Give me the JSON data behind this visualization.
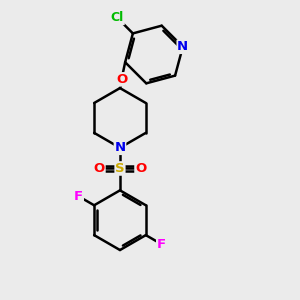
{
  "background_color": "#ebebeb",
  "bond_color": "#000000",
  "bond_width": 1.8,
  "atom_colors": {
    "N_pyridine": "#0000ee",
    "N_piperidine": "#0000ee",
    "O": "#ff0000",
    "S": "#ccaa00",
    "Cl": "#00bb00",
    "F": "#ff00ff"
  },
  "font_size": 9.5
}
